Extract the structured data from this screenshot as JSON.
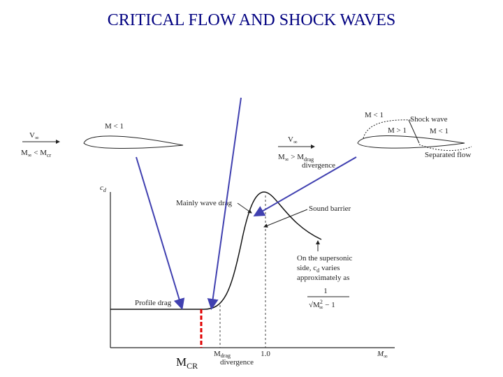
{
  "title": "CRITICAL FLOW AND SHOCK WAVES",
  "subsonic_case": {
    "local_mach": "M < 1",
    "velocity": {
      "symbol": "V",
      "sub": "∞"
    },
    "condition": {
      "lhs": "M",
      "lhs_sub": "∞",
      "op": " < M",
      "rhs_sub": "cr"
    }
  },
  "supersonic_case": {
    "local_mach_front": "M < 1",
    "shock_label": "Shock wave",
    "local_mach_super": "M > 1",
    "local_mach_rear": "M < 1",
    "velocity": {
      "symbol": "V",
      "sub": "∞"
    },
    "condition": {
      "lhs": "M",
      "lhs_sub": "∞",
      "op": " > M",
      "rhs_sub": "drag",
      "rhs_sub2": "divergence"
    },
    "separated_label": "Separated flow"
  },
  "graph": {
    "y_axis": {
      "symbol": "c",
      "sub": "d"
    },
    "x_axis": {
      "symbol": "M",
      "sub": "∞"
    },
    "wave_drag": "Mainly wave drag",
    "sound_barrier": "Sound barrier",
    "supersonic_note": [
      "On the supersonic",
      "side, c",
      "varies",
      "approximately as"
    ],
    "supersonic_note_sub": "d",
    "formula": {
      "numerator": "1",
      "symbol": "M",
      "sup": "2",
      "sub": "∞",
      "tail": " − 1"
    },
    "profile_drag": "Profile drag",
    "m_drag": {
      "symbol": "M",
      "sub": "drag",
      "sub2": "divergence"
    },
    "mach_one": "1.0"
  },
  "mcr_label": {
    "symbol": "M",
    "sub": "CR"
  }
}
